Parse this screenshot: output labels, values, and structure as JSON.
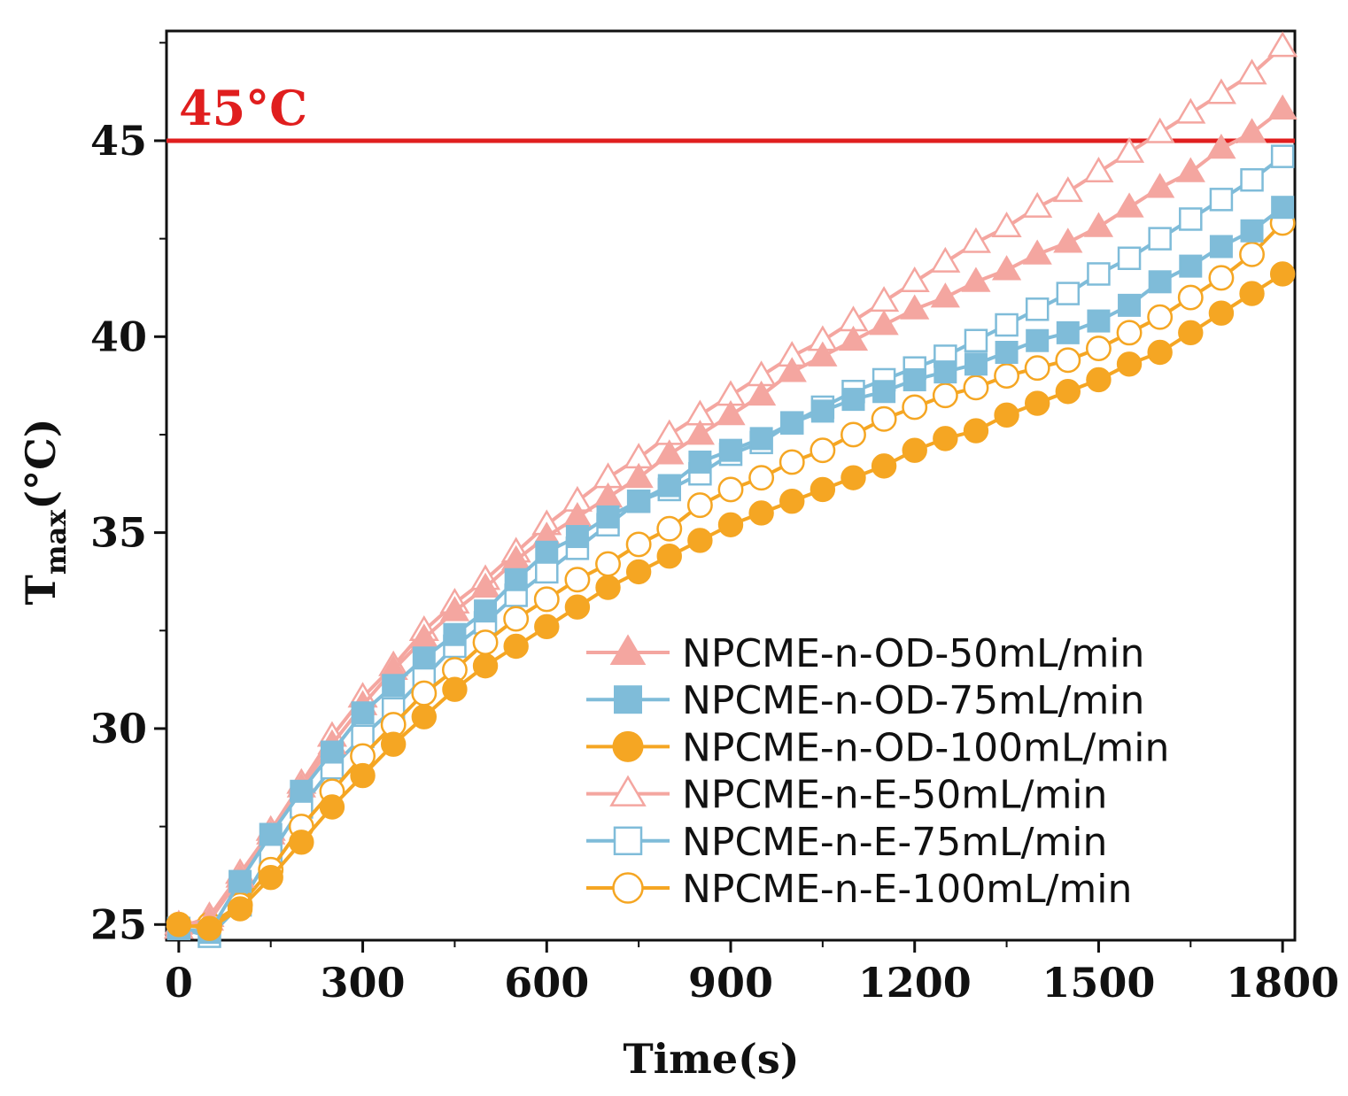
{
  "chart_data": {
    "type": "line",
    "xlabel": "Time(s)",
    "ylabel_main": "T",
    "ylabel_sub": "max",
    "ylabel_unit": "(°C)",
    "xlim": [
      -20,
      1820
    ],
    "ylim": [
      24.6,
      47.8
    ],
    "xticks": [
      0,
      300,
      600,
      900,
      1200,
      1500,
      1800
    ],
    "yticks": [
      25,
      30,
      35,
      40,
      45
    ],
    "grid": false,
    "legend_position": "bottom-right",
    "reference_line": {
      "y": 45,
      "label": "45°C",
      "color": "#e01e1e"
    },
    "x": [
      0,
      50,
      100,
      150,
      200,
      250,
      300,
      350,
      400,
      450,
      500,
      550,
      600,
      650,
      700,
      750,
      800,
      850,
      900,
      950,
      1000,
      1050,
      1100,
      1150,
      1200,
      1250,
      1300,
      1350,
      1400,
      1450,
      1500,
      1550,
      1600,
      1650,
      1700,
      1750,
      1800
    ],
    "series": [
      {
        "name": "NPCME-n-OD-50mL/min",
        "color": "#f4a6a0",
        "marker": "triangle",
        "filled": true,
        "values": [
          25.0,
          25.1,
          26.2,
          27.3,
          28.5,
          29.6,
          30.6,
          31.5,
          32.3,
          33.0,
          33.6,
          34.3,
          34.9,
          35.4,
          35.9,
          36.4,
          37.0,
          37.5,
          38.0,
          38.5,
          39.1,
          39.5,
          39.9,
          40.3,
          40.7,
          41.0,
          41.4,
          41.7,
          42.1,
          42.4,
          42.8,
          43.3,
          43.8,
          44.2,
          44.8,
          45.2,
          45.8
        ]
      },
      {
        "name": "NPCME-n-OD-75mL/min",
        "color": "#7fbcd9",
        "marker": "square",
        "filled": true,
        "values": [
          24.9,
          24.8,
          26.1,
          27.3,
          28.4,
          29.4,
          30.4,
          31.1,
          31.8,
          32.4,
          33.0,
          33.8,
          34.5,
          34.9,
          35.4,
          35.8,
          36.2,
          36.8,
          37.1,
          37.4,
          37.8,
          38.1,
          38.4,
          38.6,
          38.9,
          39.1,
          39.3,
          39.6,
          39.9,
          40.1,
          40.4,
          40.8,
          41.4,
          41.8,
          42.3,
          42.7,
          43.3
        ]
      },
      {
        "name": "NPCME-n-OD-100mL/min",
        "color": "#f5a623",
        "marker": "circle",
        "filled": true,
        "values": [
          25.0,
          24.9,
          25.4,
          26.2,
          27.1,
          28.0,
          28.8,
          29.6,
          30.3,
          31.0,
          31.6,
          32.1,
          32.6,
          33.1,
          33.6,
          34.0,
          34.4,
          34.8,
          35.2,
          35.5,
          35.8,
          36.1,
          36.4,
          36.7,
          37.1,
          37.4,
          37.6,
          38.0,
          38.3,
          38.6,
          38.9,
          39.3,
          39.6,
          40.1,
          40.6,
          41.1,
          41.6
        ]
      },
      {
        "name": "NPCME-n-E-50mL/min",
        "color": "#f4a6a0",
        "marker": "triangle",
        "filled": false,
        "values": [
          24.9,
          25.2,
          26.3,
          27.4,
          28.6,
          29.8,
          30.8,
          31.6,
          32.5,
          33.2,
          33.8,
          34.5,
          35.2,
          35.8,
          36.4,
          36.9,
          37.5,
          38.0,
          38.5,
          39.0,
          39.5,
          39.9,
          40.4,
          40.9,
          41.4,
          41.9,
          42.4,
          42.8,
          43.3,
          43.7,
          44.2,
          44.7,
          45.2,
          45.7,
          46.2,
          46.7,
          47.4
        ]
      },
      {
        "name": "NPCME-n-E-75mL/min",
        "color": "#7fbcd9",
        "marker": "square",
        "filled": false,
        "values": [
          24.9,
          24.7,
          25.5,
          26.8,
          28.0,
          29.0,
          29.8,
          30.5,
          31.3,
          32.1,
          32.7,
          33.4,
          34.0,
          34.6,
          35.2,
          35.8,
          36.1,
          36.5,
          37.0,
          37.3,
          37.8,
          38.2,
          38.6,
          38.9,
          39.2,
          39.5,
          39.9,
          40.3,
          40.7,
          41.1,
          41.6,
          42.0,
          42.5,
          43.0,
          43.5,
          44.0,
          44.6
        ]
      },
      {
        "name": "NPCME-n-E-100mL/min",
        "color": "#f5a623",
        "marker": "circle",
        "filled": false,
        "values": [
          25.0,
          25.0,
          25.5,
          26.4,
          27.5,
          28.4,
          29.3,
          30.1,
          30.9,
          31.5,
          32.2,
          32.8,
          33.3,
          33.8,
          34.2,
          34.7,
          35.1,
          35.7,
          36.1,
          36.4,
          36.8,
          37.1,
          37.5,
          37.9,
          38.2,
          38.5,
          38.7,
          39.0,
          39.2,
          39.4,
          39.7,
          40.1,
          40.5,
          41.0,
          41.5,
          42.1,
          42.9
        ]
      }
    ]
  }
}
